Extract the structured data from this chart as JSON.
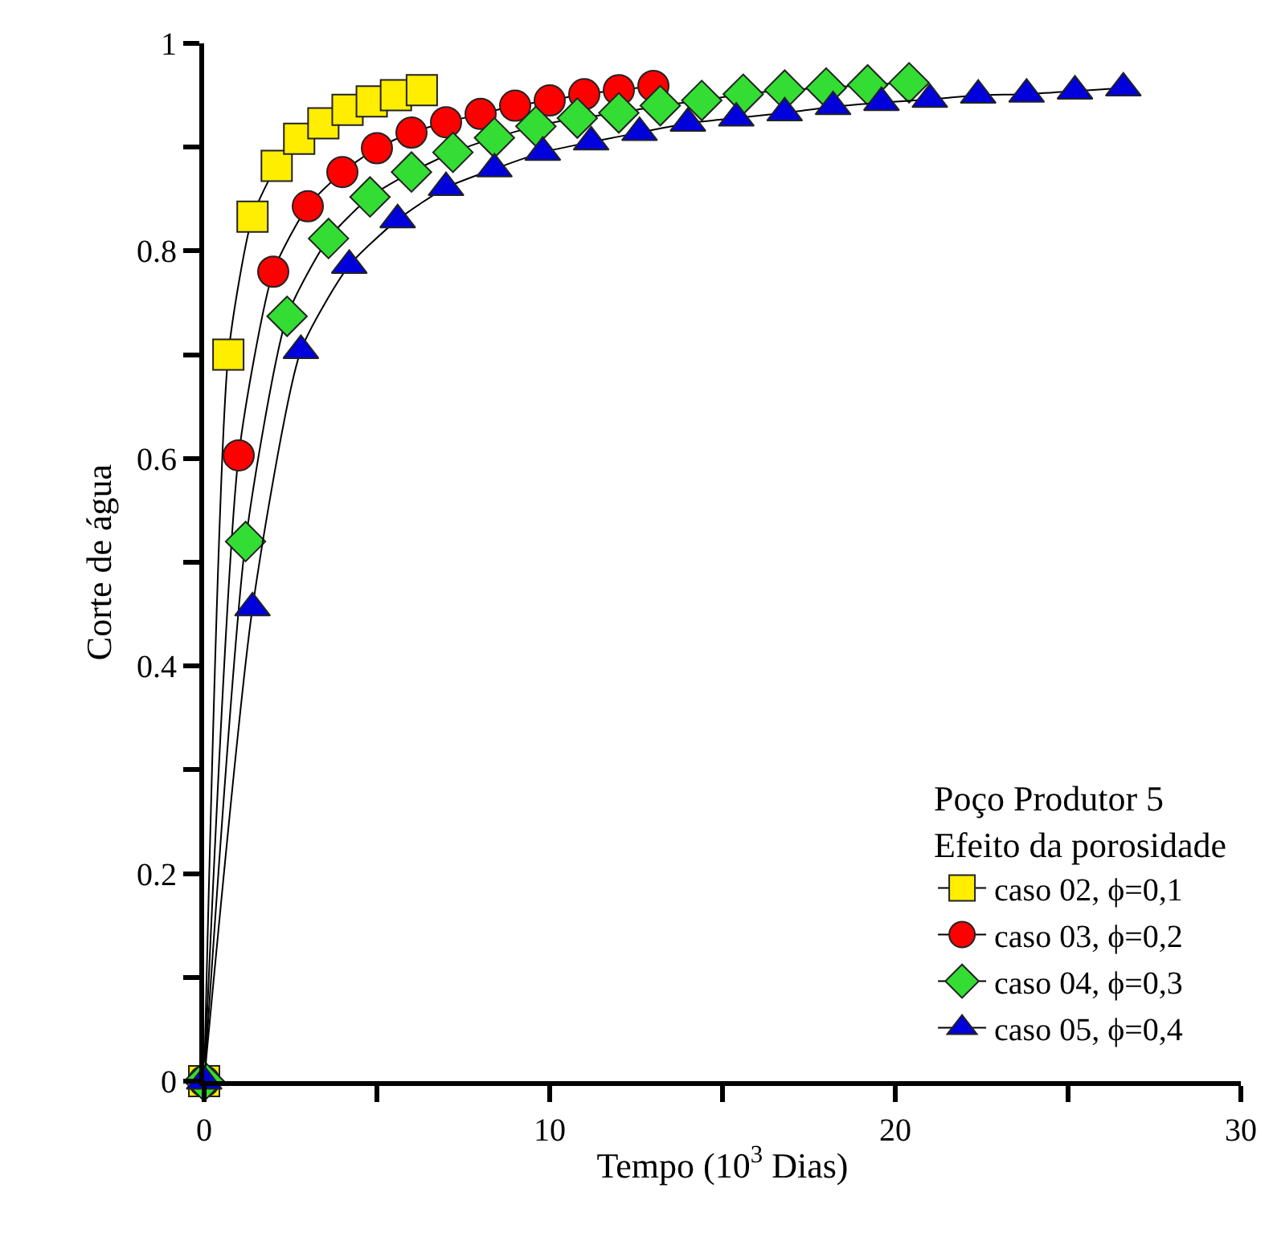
{
  "chart_data": {
    "type": "line",
    "xlabel": "Tempo (10$^{3}$ Dias)",
    "ylabel": "Corte de água",
    "legend_title": "Poço Produtor 5\nEfeito da porosidade",
    "legend": "bottom right",
    "grid": false,
    "line_style": "solid",
    "xlim": [
      0,
      30
    ],
    "xticks": [
      0,
      {
        "value": 5,
        "label": null
      },
      10,
      {
        "value": 15,
        "label": null
      },
      20,
      {
        "value": 25,
        "label": null
      },
      30
    ],
    "ylim": [
      0,
      1
    ],
    "yticks": [
      0,
      {
        "value": 0.1,
        "label": null
      },
      0.2,
      {
        "value": 0.3,
        "label": null
      },
      0.4,
      {
        "value": 0.5,
        "label": null
      },
      0.6,
      {
        "value": 0.7,
        "label": null
      },
      0.8,
      {
        "value": 0.9,
        "label": null
      },
      1
    ],
    "series": [
      {
        "name": "caso 02, ϕ=0,1",
        "color": "#ffee00",
        "marker": "square",
        "x": [
          0,
          0.7,
          1.4,
          2.1,
          2.75,
          3.45,
          4.15,
          4.85,
          5.55,
          6.3
        ],
        "values": [
          0,
          0.7,
          0.833,
          0.882,
          0.908,
          0.923,
          0.936,
          0.944,
          0.95,
          0.955
        ]
      },
      {
        "name": "caso 03, ϕ=0,2",
        "color": "#ff0000",
        "marker": "circle",
        "x": [
          0,
          1,
          2,
          3,
          4,
          5,
          6,
          7,
          8,
          9,
          10,
          11,
          12,
          13
        ],
        "values": [
          0,
          0.603,
          0.78,
          0.843,
          0.876,
          0.899,
          0.914,
          0.924,
          0.932,
          0.94,
          0.945,
          0.951,
          0.955,
          0.959
        ]
      },
      {
        "name": "caso 04, ϕ=0,3",
        "color": "#33dd33",
        "marker": "diamond",
        "x": [
          0,
          1.2,
          2.4,
          3.6,
          4.8,
          6,
          7.2,
          8.4,
          9.6,
          10.8,
          12,
          13.2,
          14.4,
          15.6,
          16.8,
          18,
          19.2,
          20.4
        ],
        "values": [
          0,
          0.52,
          0.737,
          0.812,
          0.852,
          0.876,
          0.895,
          0.909,
          0.92,
          0.928,
          0.933,
          0.94,
          0.945,
          0.951,
          0.955,
          0.957,
          0.96,
          0.962
        ]
      },
      {
        "name": "caso 05, ϕ=0,4",
        "color": "#0000dd",
        "marker": "triangle",
        "x": [
          0,
          1.4,
          2.8,
          4.2,
          5.6,
          7,
          8.4,
          9.8,
          11.2,
          12.6,
          14,
          15.4,
          16.8,
          18.2,
          19.6,
          21,
          22.4,
          23.8,
          25.2,
          26.6
        ],
        "values": [
          0,
          0.456,
          0.704,
          0.786,
          0.83,
          0.861,
          0.879,
          0.895,
          0.905,
          0.914,
          0.923,
          0.928,
          0.933,
          0.939,
          0.943,
          0.946,
          0.95,
          0.951,
          0.954,
          0.957
        ]
      }
    ]
  }
}
